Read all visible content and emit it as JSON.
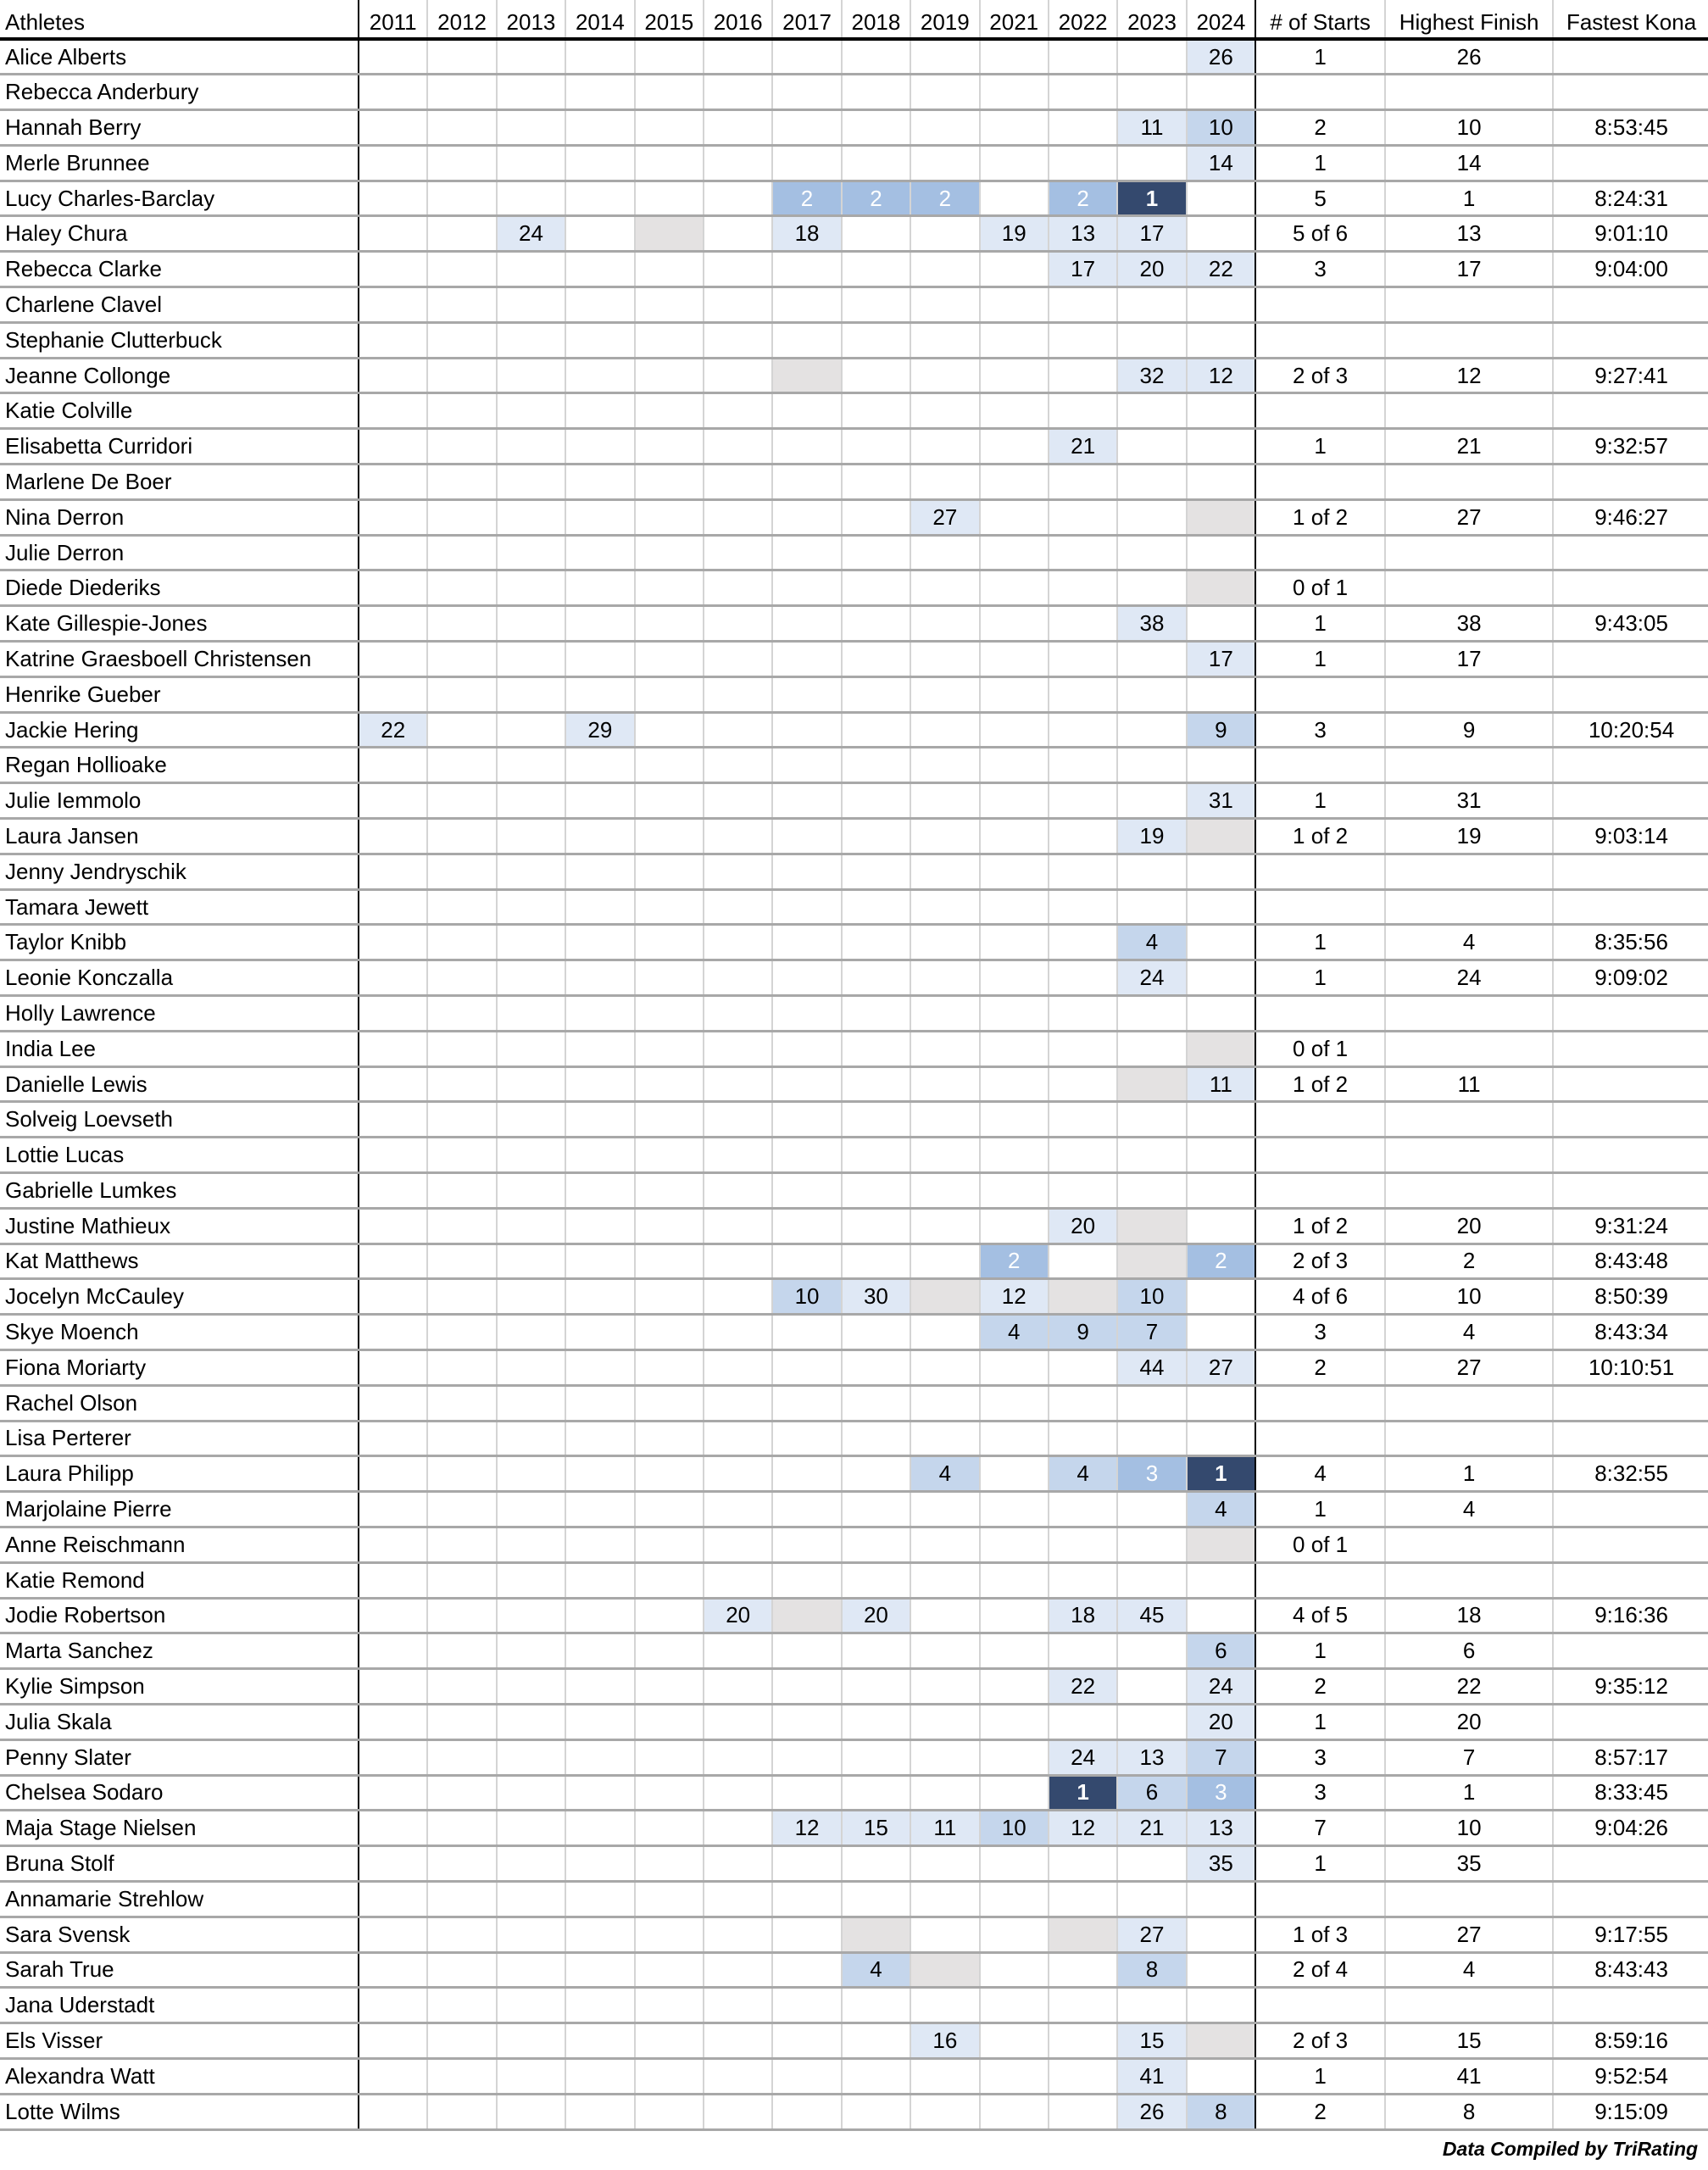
{
  "headers": {
    "athletes": "Athletes",
    "years": [
      "2011",
      "2012",
      "2013",
      "2014",
      "2015",
      "2016",
      "2017",
      "2018",
      "2019",
      "2021",
      "2022",
      "2023",
      "2024"
    ],
    "starts": "# of Starts",
    "best": "Highest Finish",
    "kona": "Fastest Kona"
  },
  "colors": {
    "first": "#34496e",
    "podium": "#a4bfe2",
    "top10": "#c5d6ec",
    "finisher": "#dfe8f5",
    "dnf": "#e4e2e2"
  },
  "athletes": [
    {
      "name": "Alice Alberts",
      "r": {
        "2024": 26
      },
      "dnf": [],
      "starts": "1",
      "best": "26",
      "kona": ""
    },
    {
      "name": "Rebecca Anderbury",
      "r": {},
      "dnf": [],
      "starts": "",
      "best": "",
      "kona": ""
    },
    {
      "name": "Hannah Berry",
      "r": {
        "2023": 11,
        "2024": 10
      },
      "dnf": [],
      "starts": "2",
      "best": "10",
      "kona": "8:53:45"
    },
    {
      "name": "Merle Brunnee",
      "r": {
        "2024": 14
      },
      "dnf": [],
      "starts": "1",
      "best": "14",
      "kona": ""
    },
    {
      "name": "Lucy Charles-Barclay",
      "r": {
        "2017": 2,
        "2018": 2,
        "2019": 2,
        "2022": 2,
        "2023": 1
      },
      "dnf": [],
      "starts": "5",
      "best": "1",
      "kona": "8:24:31"
    },
    {
      "name": "Haley Chura",
      "r": {
        "2013": 24,
        "2017": 18,
        "2021": 19,
        "2022": 13,
        "2023": 17
      },
      "dnf": [
        "2015"
      ],
      "starts": "5 of 6",
      "best": "13",
      "kona": "9:01:10"
    },
    {
      "name": "Rebecca Clarke",
      "r": {
        "2022": 17,
        "2023": 20,
        "2024": 22
      },
      "dnf": [],
      "starts": "3",
      "best": "17",
      "kona": "9:04:00"
    },
    {
      "name": "Charlene Clavel",
      "r": {},
      "dnf": [],
      "starts": "",
      "best": "",
      "kona": ""
    },
    {
      "name": "Stephanie Clutterbuck",
      "r": {},
      "dnf": [],
      "starts": "",
      "best": "",
      "kona": ""
    },
    {
      "name": "Jeanne Collonge",
      "r": {
        "2023": 32,
        "2024": 12
      },
      "dnf": [
        "2017"
      ],
      "starts": "2 of 3",
      "best": "12",
      "kona": "9:27:41"
    },
    {
      "name": "Katie Colville",
      "r": {},
      "dnf": [],
      "starts": "",
      "best": "",
      "kona": ""
    },
    {
      "name": "Elisabetta Curridori",
      "r": {
        "2022": 21
      },
      "dnf": [],
      "starts": "1",
      "best": "21",
      "kona": "9:32:57"
    },
    {
      "name": "Marlene De Boer",
      "r": {},
      "dnf": [],
      "starts": "",
      "best": "",
      "kona": ""
    },
    {
      "name": "Nina Derron",
      "r": {
        "2019": 27
      },
      "dnf": [
        "2024"
      ],
      "starts": "1 of 2",
      "best": "27",
      "kona": "9:46:27"
    },
    {
      "name": "Julie Derron",
      "r": {},
      "dnf": [],
      "starts": "",
      "best": "",
      "kona": ""
    },
    {
      "name": "Diede Diederiks",
      "r": {},
      "dnf": [
        "2024"
      ],
      "starts": "0 of 1",
      "best": "",
      "kona": ""
    },
    {
      "name": "Kate Gillespie-Jones",
      "r": {
        "2023": 38
      },
      "dnf": [],
      "starts": "1",
      "best": "38",
      "kona": "9:43:05"
    },
    {
      "name": "Katrine Graesboell Christensen",
      "r": {
        "2024": 17
      },
      "dnf": [],
      "starts": "1",
      "best": "17",
      "kona": ""
    },
    {
      "name": "Henrike Gueber",
      "r": {},
      "dnf": [],
      "starts": "",
      "best": "",
      "kona": ""
    },
    {
      "name": "Jackie Hering",
      "r": {
        "2011": 22,
        "2014": 29,
        "2024": 9
      },
      "dnf": [],
      "starts": "3",
      "best": "9",
      "kona": "10:20:54"
    },
    {
      "name": "Regan Hollioake",
      "r": {},
      "dnf": [],
      "starts": "",
      "best": "",
      "kona": ""
    },
    {
      "name": "Julie Iemmolo",
      "r": {
        "2024": 31
      },
      "dnf": [],
      "starts": "1",
      "best": "31",
      "kona": ""
    },
    {
      "name": "Laura Jansen",
      "r": {
        "2023": 19
      },
      "dnf": [
        "2024"
      ],
      "starts": "1 of 2",
      "best": "19",
      "kona": "9:03:14"
    },
    {
      "name": "Jenny Jendryschik",
      "r": {},
      "dnf": [],
      "starts": "",
      "best": "",
      "kona": ""
    },
    {
      "name": "Tamara Jewett",
      "r": {},
      "dnf": [],
      "starts": "",
      "best": "",
      "kona": ""
    },
    {
      "name": "Taylor Knibb",
      "r": {
        "2023": 4
      },
      "dnf": [],
      "starts": "1",
      "best": "4",
      "kona": "8:35:56"
    },
    {
      "name": "Leonie Konczalla",
      "r": {
        "2023": 24
      },
      "dnf": [],
      "starts": "1",
      "best": "24",
      "kona": "9:09:02"
    },
    {
      "name": "Holly Lawrence",
      "r": {},
      "dnf": [],
      "starts": "",
      "best": "",
      "kona": ""
    },
    {
      "name": "India Lee",
      "r": {},
      "dnf": [
        "2024"
      ],
      "starts": "0 of 1",
      "best": "",
      "kona": ""
    },
    {
      "name": "Danielle Lewis",
      "r": {
        "2024": 11
      },
      "dnf": [
        "2023"
      ],
      "starts": "1 of 2",
      "best": "11",
      "kona": ""
    },
    {
      "name": "Solveig Loevseth",
      "r": {},
      "dnf": [],
      "starts": "",
      "best": "",
      "kona": ""
    },
    {
      "name": "Lottie Lucas",
      "r": {},
      "dnf": [],
      "starts": "",
      "best": "",
      "kona": ""
    },
    {
      "name": "Gabrielle Lumkes",
      "r": {},
      "dnf": [],
      "starts": "",
      "best": "",
      "kona": ""
    },
    {
      "name": "Justine Mathieux",
      "r": {
        "2022": 20
      },
      "dnf": [
        "2023"
      ],
      "starts": "1 of 2",
      "best": "20",
      "kona": "9:31:24"
    },
    {
      "name": "Kat Matthews",
      "r": {
        "2021": 2,
        "2024": 2
      },
      "dnf": [
        "2023"
      ],
      "starts": "2 of 3",
      "best": "2",
      "kona": "8:43:48"
    },
    {
      "name": "Jocelyn McCauley",
      "r": {
        "2017": 10,
        "2018": 30,
        "2021": 12,
        "2023": 10
      },
      "dnf": [
        "2019",
        "2022"
      ],
      "starts": "4 of 6",
      "best": "10",
      "kona": "8:50:39"
    },
    {
      "name": "Skye Moench",
      "r": {
        "2021": 4,
        "2022": 9,
        "2023": 7
      },
      "dnf": [],
      "starts": "3",
      "best": "4",
      "kona": "8:43:34"
    },
    {
      "name": "Fiona Moriarty",
      "r": {
        "2023": 44,
        "2024": 27
      },
      "dnf": [],
      "starts": "2",
      "best": "27",
      "kona": "10:10:51"
    },
    {
      "name": "Rachel Olson",
      "r": {},
      "dnf": [],
      "starts": "",
      "best": "",
      "kona": ""
    },
    {
      "name": "Lisa Perterer",
      "r": {},
      "dnf": [],
      "starts": "",
      "best": "",
      "kona": ""
    },
    {
      "name": "Laura Philipp",
      "r": {
        "2019": 4,
        "2022": 4,
        "2023": 3,
        "2024": 1
      },
      "dnf": [],
      "starts": "4",
      "best": "1",
      "kona": "8:32:55"
    },
    {
      "name": "Marjolaine Pierre",
      "r": {
        "2024": 4
      },
      "dnf": [],
      "starts": "1",
      "best": "4",
      "kona": ""
    },
    {
      "name": "Anne Reischmann",
      "r": {},
      "dnf": [
        "2024"
      ],
      "starts": "0 of 1",
      "best": "",
      "kona": ""
    },
    {
      "name": "Katie Remond",
      "r": {},
      "dnf": [],
      "starts": "",
      "best": "",
      "kona": ""
    },
    {
      "name": "Jodie Robertson",
      "r": {
        "2016": 20,
        "2018": 20,
        "2022": 18,
        "2023": 45
      },
      "dnf": [
        "2017"
      ],
      "starts": "4 of 5",
      "best": "18",
      "kona": "9:16:36"
    },
    {
      "name": "Marta Sanchez",
      "r": {
        "2024": 6
      },
      "dnf": [],
      "starts": "1",
      "best": "6",
      "kona": ""
    },
    {
      "name": "Kylie Simpson",
      "r": {
        "2022": 22,
        "2024": 24
      },
      "dnf": [],
      "starts": "2",
      "best": "22",
      "kona": "9:35:12"
    },
    {
      "name": "Julia Skala",
      "r": {
        "2024": 20
      },
      "dnf": [],
      "starts": "1",
      "best": "20",
      "kona": ""
    },
    {
      "name": "Penny Slater",
      "r": {
        "2022": 24,
        "2023": 13,
        "2024": 7
      },
      "dnf": [],
      "starts": "3",
      "best": "7",
      "kona": "8:57:17"
    },
    {
      "name": "Chelsea Sodaro",
      "r": {
        "2022": 1,
        "2023": 6,
        "2024": 3
      },
      "dnf": [],
      "starts": "3",
      "best": "1",
      "kona": "8:33:45"
    },
    {
      "name": "Maja Stage Nielsen",
      "r": {
        "2017": 12,
        "2018": 15,
        "2019": 11,
        "2021": 10,
        "2022": 12,
        "2023": 21,
        "2024": 13
      },
      "dnf": [],
      "starts": "7",
      "best": "10",
      "kona": "9:04:26"
    },
    {
      "name": "Bruna Stolf",
      "r": {
        "2024": 35
      },
      "dnf": [],
      "starts": "1",
      "best": "35",
      "kona": ""
    },
    {
      "name": "Annamarie Strehlow",
      "r": {},
      "dnf": [],
      "starts": "",
      "best": "",
      "kona": ""
    },
    {
      "name": "Sara Svensk",
      "r": {
        "2023": 27
      },
      "dnf": [
        "2018",
        "2022"
      ],
      "starts": "1 of 3",
      "best": "27",
      "kona": "9:17:55"
    },
    {
      "name": "Sarah True",
      "r": {
        "2018": 4,
        "2023": 8
      },
      "dnf": [
        "2019"
      ],
      "starts": "2 of 4",
      "best": "4",
      "kona": "8:43:43"
    },
    {
      "name": "Jana Uderstadt",
      "r": {},
      "dnf": [],
      "starts": "",
      "best": "",
      "kona": ""
    },
    {
      "name": "Els Visser",
      "r": {
        "2019": 16,
        "2023": 15
      },
      "dnf": [
        "2024"
      ],
      "starts": "2 of 3",
      "best": "15",
      "kona": "8:59:16"
    },
    {
      "name": "Alexandra Watt",
      "r": {
        "2023": 41
      },
      "dnf": [],
      "starts": "1",
      "best": "41",
      "kona": "9:52:54"
    },
    {
      "name": "Lotte Wilms",
      "r": {
        "2023": 26,
        "2024": 8
      },
      "dnf": [],
      "starts": "2",
      "best": "8",
      "kona": "9:15:09"
    }
  ],
  "footer": {
    "credit": "Data Compiled by TriRating"
  }
}
